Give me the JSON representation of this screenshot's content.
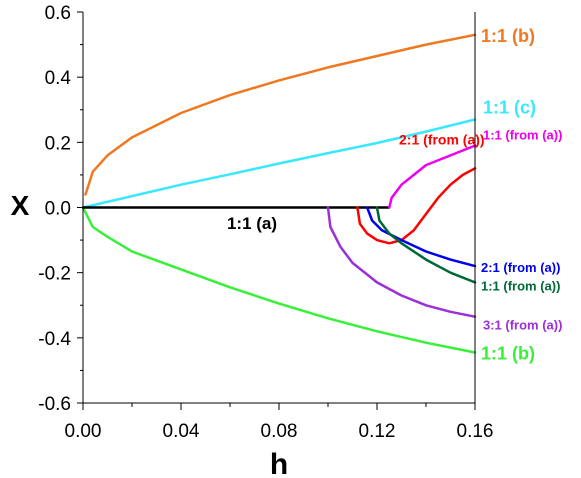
{
  "chart_data": {
    "type": "line",
    "xlabel": "h",
    "ylabel": "X",
    "xlim": [
      0,
      0.16
    ],
    "ylim": [
      -0.6,
      0.6
    ],
    "x_ticks": [
      0.0,
      0.04,
      0.08,
      0.12,
      0.16
    ],
    "x_tick_labels": [
      "0.00",
      "0.04",
      "0.08",
      "0.12",
      "0.16"
    ],
    "y_ticks": [
      0.6,
      0.4,
      0.2,
      0.0,
      -0.2,
      -0.4,
      -0.6
    ],
    "y_tick_labels": [
      "0.6",
      "0.4",
      "0.2",
      "0.0",
      "-0.2",
      "-0.4",
      "-0.6"
    ],
    "grid": false,
    "series": [
      {
        "name": "1:1 (b)",
        "color": "#f07820",
        "label_pos": "right-end",
        "points": [
          [
            0.001,
            0.04
          ],
          [
            0.004,
            0.11
          ],
          [
            0.01,
            0.16
          ],
          [
            0.02,
            0.215
          ],
          [
            0.04,
            0.29
          ],
          [
            0.06,
            0.345
          ],
          [
            0.08,
            0.39
          ],
          [
            0.1,
            0.43
          ],
          [
            0.12,
            0.465
          ],
          [
            0.14,
            0.5
          ],
          [
            0.16,
            0.53
          ]
        ]
      },
      {
        "name": "1:1 (c)",
        "color": "#38e8ff",
        "label_pos": "right-end",
        "points": [
          [
            0.0,
            0.0
          ],
          [
            0.02,
            0.035
          ],
          [
            0.04,
            0.07
          ],
          [
            0.06,
            0.102
          ],
          [
            0.08,
            0.135
          ],
          [
            0.1,
            0.167
          ],
          [
            0.12,
            0.198
          ],
          [
            0.14,
            0.233
          ],
          [
            0.16,
            0.27
          ]
        ]
      },
      {
        "name": "1:1 (b)",
        "color": "#38f038",
        "label_pos": "right-end",
        "points": [
          [
            0.0,
            0.0
          ],
          [
            0.004,
            -0.06
          ],
          [
            0.01,
            -0.09
          ],
          [
            0.02,
            -0.135
          ],
          [
            0.04,
            -0.19
          ],
          [
            0.06,
            -0.245
          ],
          [
            0.08,
            -0.295
          ],
          [
            0.1,
            -0.34
          ],
          [
            0.12,
            -0.38
          ],
          [
            0.14,
            -0.415
          ],
          [
            0.16,
            -0.445
          ]
        ]
      },
      {
        "name": "1:1 (a)",
        "color": "#000000",
        "label_pos": "inline",
        "points": [
          [
            0.0,
            0.0
          ],
          [
            0.125,
            0.0
          ]
        ]
      },
      {
        "name": "1:1 (from (a))",
        "color": "#ee00ee",
        "label_pos": "right-end",
        "points": [
          [
            0.125,
            0.0
          ],
          [
            0.126,
            0.03
          ],
          [
            0.13,
            0.07
          ],
          [
            0.135,
            0.1
          ],
          [
            0.14,
            0.13
          ],
          [
            0.15,
            0.16
          ],
          [
            0.16,
            0.19
          ]
        ]
      },
      {
        "name": "2:1 (from (a))",
        "color": "#ff0000",
        "label_pos": "right-end",
        "points": [
          [
            0.112,
            0.0
          ],
          [
            0.113,
            -0.05
          ],
          [
            0.116,
            -0.08
          ],
          [
            0.12,
            -0.1
          ],
          [
            0.125,
            -0.11
          ],
          [
            0.13,
            -0.1
          ],
          [
            0.135,
            -0.07
          ],
          [
            0.14,
            -0.02
          ],
          [
            0.145,
            0.03
          ],
          [
            0.15,
            0.07
          ],
          [
            0.155,
            0.1
          ],
          [
            0.16,
            0.12
          ]
        ]
      },
      {
        "name": "2:1 (from (a))",
        "color": "#0000ee",
        "label_pos": "right-end",
        "points": [
          [
            0.116,
            0.0
          ],
          [
            0.118,
            -0.04
          ],
          [
            0.122,
            -0.07
          ],
          [
            0.13,
            -0.1
          ],
          [
            0.14,
            -0.135
          ],
          [
            0.15,
            -0.16
          ],
          [
            0.16,
            -0.18
          ]
        ]
      },
      {
        "name": "1:1 (from (a))",
        "color": "#006837",
        "label_pos": "right-end",
        "points": [
          [
            0.12,
            0.0
          ],
          [
            0.121,
            -0.04
          ],
          [
            0.125,
            -0.08
          ],
          [
            0.13,
            -0.11
          ],
          [
            0.14,
            -0.16
          ],
          [
            0.15,
            -0.2
          ],
          [
            0.16,
            -0.23
          ]
        ]
      },
      {
        "name": "3:1 (from (a))",
        "color": "#9b30d9",
        "label_pos": "right-end",
        "points": [
          [
            0.1,
            0.0
          ],
          [
            0.101,
            -0.06
          ],
          [
            0.105,
            -0.12
          ],
          [
            0.11,
            -0.17
          ],
          [
            0.12,
            -0.23
          ],
          [
            0.13,
            -0.27
          ],
          [
            0.14,
            -0.3
          ],
          [
            0.15,
            -0.32
          ],
          [
            0.16,
            -0.335
          ]
        ]
      }
    ]
  }
}
